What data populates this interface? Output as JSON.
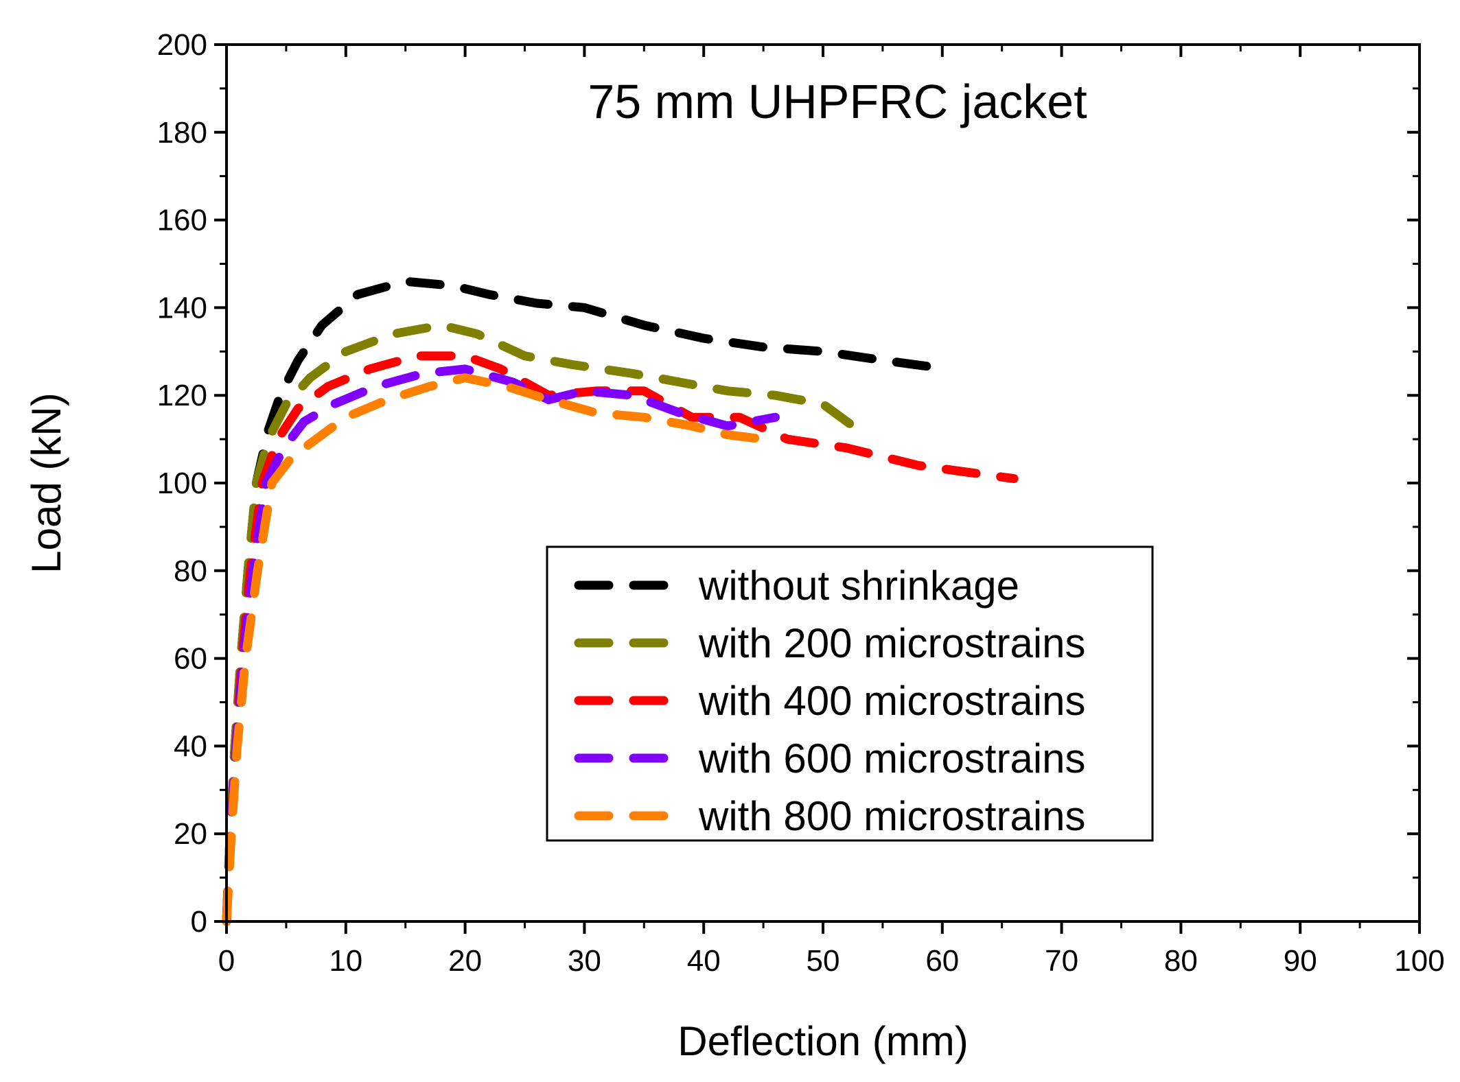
{
  "chart_data": {
    "type": "line",
    "title": "75 mm UHPFRC  jacket",
    "xlabel": "Deflection (mm)",
    "ylabel": "Load (kN)",
    "xlim": [
      0,
      100
    ],
    "ylim": [
      0,
      200
    ],
    "xticks": [
      0,
      10,
      20,
      30,
      40,
      50,
      60,
      70,
      80,
      90,
      100
    ],
    "yticks": [
      0,
      20,
      40,
      60,
      80,
      100,
      120,
      140,
      160,
      180,
      200
    ],
    "x_minor_step": 5,
    "y_minor_step": 10,
    "grid": false,
    "legend_position": "center-right",
    "line_style": "dashed",
    "series": [
      {
        "name": "without shrinkage",
        "color": "#000000",
        "x": [
          0,
          0.3,
          0.7,
          1.2,
          1.8,
          2.5,
          3.5,
          4.5,
          6,
          8,
          11,
          15,
          19,
          22,
          26,
          30,
          35,
          40,
          45,
          50,
          55,
          60.5
        ],
        "y": [
          0,
          20,
          40,
          60,
          80,
          100,
          112,
          120,
          128,
          136,
          143,
          146,
          145,
          143,
          141,
          140,
          136,
          133,
          131,
          130,
          128,
          126
        ]
      },
      {
        "name": "with 200 microstrains",
        "color": "#808000",
        "x": [
          0,
          0.3,
          0.7,
          1.2,
          1.8,
          2.5,
          3.5,
          5,
          7,
          10,
          14,
          18,
          21,
          25,
          29,
          34,
          38,
          42,
          46,
          50,
          53
        ],
        "y": [
          0,
          20,
          40,
          60,
          80,
          100,
          110,
          118,
          124,
          130,
          134,
          136,
          134,
          129,
          127,
          125,
          123,
          121,
          120,
          118,
          112
        ]
      },
      {
        "name": "with 400 microstrains",
        "color": "#ff0000",
        "x": [
          0,
          0.35,
          0.8,
          1.3,
          2,
          3,
          4.3,
          6,
          8.5,
          12,
          16,
          20,
          23,
          27,
          31,
          35,
          39,
          43,
          47,
          52,
          58,
          66
        ],
        "y": [
          0,
          20,
          40,
          60,
          80,
          100,
          110,
          117,
          122,
          126,
          129,
          129,
          126,
          120,
          121,
          121,
          115,
          115,
          110,
          108,
          104,
          101
        ]
      },
      {
        "name": "with 600 microstrains",
        "color": "#8000ff",
        "x": [
          0,
          0.35,
          0.8,
          1.4,
          2.2,
          3.3,
          4.8,
          6.5,
          9,
          12.5,
          16.5,
          20,
          24,
          27,
          30,
          34,
          38,
          42,
          46
        ],
        "y": [
          0,
          20,
          40,
          60,
          80,
          100,
          108,
          114,
          118,
          122,
          125,
          126,
          123,
          119,
          121,
          120,
          116,
          113,
          115
        ]
      },
      {
        "name": "with 800 microstrains",
        "color": "#ff8000",
        "x": [
          0,
          0.4,
          0.9,
          1.6,
          2.6,
          3.8,
          5.5,
          7.5,
          10,
          13.5,
          17,
          20,
          23.5,
          27,
          31,
          35,
          39,
          42,
          45
        ],
        "y": [
          0,
          20,
          40,
          60,
          80,
          100,
          106,
          110,
          115,
          119,
          122,
          124,
          122,
          119,
          116,
          115,
          113,
          111,
          110
        ]
      }
    ]
  }
}
